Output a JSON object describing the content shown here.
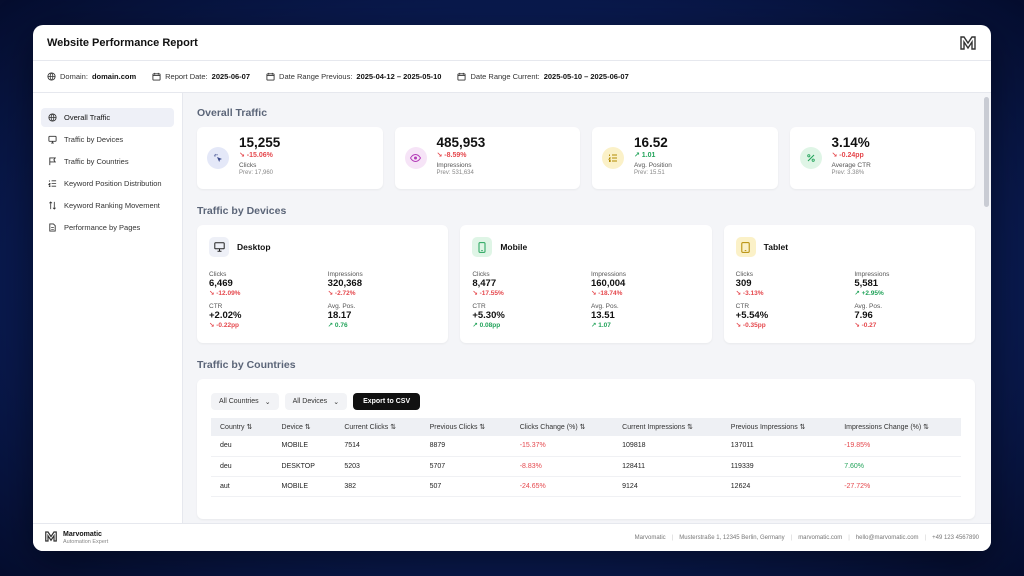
{
  "header": {
    "title": "Website Performance Report"
  },
  "info": {
    "domain_label": "Domain:",
    "domain": "domain.com",
    "report_label": "Report Date:",
    "report_date": "2025-06-07",
    "prev_label": "Date Range Previous:",
    "prev_range": "2025-04-12 – 2025-05-10",
    "curr_label": "Date Range Current:",
    "curr_range": "2025-05-10 – 2025-06-07"
  },
  "sidebar": {
    "items": [
      {
        "label": "Overall Traffic"
      },
      {
        "label": "Traffic by Devices"
      },
      {
        "label": "Traffic by Countries"
      },
      {
        "label": "Keyword Position Distribution"
      },
      {
        "label": "Keyword Ranking Movement"
      },
      {
        "label": "Performance by Pages"
      }
    ]
  },
  "overall": {
    "title": "Overall Traffic",
    "kpis": [
      {
        "value": "15,255",
        "change": "↘ -15.06%",
        "label": "Clicks",
        "prev": "Prev: 17,960"
      },
      {
        "value": "485,953",
        "change": "↘ -8.59%",
        "label": "Impressions",
        "prev": "Prev: 531,634"
      },
      {
        "value": "16.52",
        "change": "↗ 1.01",
        "label": "Avg. Position",
        "prev": "Prev: 15.51"
      },
      {
        "value": "3.14%",
        "change": "↘ -0.24pp",
        "label": "Average CTR",
        "prev": "Prev: 3.38%"
      }
    ]
  },
  "devices": {
    "title": "Traffic by Devices",
    "cards": [
      {
        "name": "Desktop",
        "clicks_label": "Clicks",
        "clicks": "6,469",
        "clicks_chg": "↘ -12.09%",
        "impr_label": "Impressions",
        "impr": "320,368",
        "impr_chg": "↘ -2.72%",
        "ctr_label": "CTR",
        "ctr": "+2.02%",
        "ctr_chg": "↘ -0.22pp",
        "pos_label": "Avg. Pos.",
        "pos": "18.17",
        "pos_chg": "↗ 0.76"
      },
      {
        "name": "Mobile",
        "clicks_label": "Clicks",
        "clicks": "8,477",
        "clicks_chg": "↘ -17.55%",
        "impr_label": "Impressions",
        "impr": "160,004",
        "impr_chg": "↘ -18.74%",
        "ctr_label": "CTR",
        "ctr": "+5.30%",
        "ctr_chg": "↗ 0.08pp",
        "pos_label": "Avg. Pos.",
        "pos": "13.51",
        "pos_chg": "↗ 1.07"
      },
      {
        "name": "Tablet",
        "clicks_label": "Clicks",
        "clicks": "309",
        "clicks_chg": "↘ -3.13%",
        "impr_label": "Impressions",
        "impr": "5,581",
        "impr_chg": "↗ +2.95%",
        "ctr_label": "CTR",
        "ctr": "+5.54%",
        "ctr_chg": "↘ -0.35pp",
        "pos_label": "Avg. Pos.",
        "pos": "7.96",
        "pos_chg": "↘ -0.27"
      }
    ]
  },
  "countries": {
    "title": "Traffic by Countries",
    "filter_country": "All Countries",
    "filter_device": "All Devices",
    "export_label": "Export to CSV",
    "columns": [
      "Country ⇅",
      "Device ⇅",
      "Current Clicks ⇅",
      "Previous Clicks ⇅",
      "Clicks Change (%) ⇅",
      "Current Impressions ⇅",
      "Previous Impressions ⇅",
      "Impressions Change (%) ⇅"
    ],
    "rows": [
      [
        "deu",
        "MOBILE",
        "7514",
        "8879",
        "-15.37%",
        "109818",
        "137011",
        "-19.85%"
      ],
      [
        "deu",
        "DESKTOP",
        "5203",
        "5707",
        "-8.83%",
        "128411",
        "119339",
        "7.60%"
      ],
      [
        "aut",
        "MOBILE",
        "382",
        "507",
        "-24.65%",
        "9124",
        "12624",
        "-27.72%"
      ]
    ]
  },
  "footer": {
    "brand": "Marvomatic",
    "tagline": "Automation Expert",
    "company": "Marvomatic",
    "address": "Musterstraße 1, 12345 Berlin, Germany",
    "website": "marvomatic.com",
    "email": "hello@marvomatic.com",
    "phone": "+49 123 4567890"
  },
  "colors": {
    "negative": "#e5484d",
    "positive": "#22a35a",
    "accent": "#111111"
  }
}
